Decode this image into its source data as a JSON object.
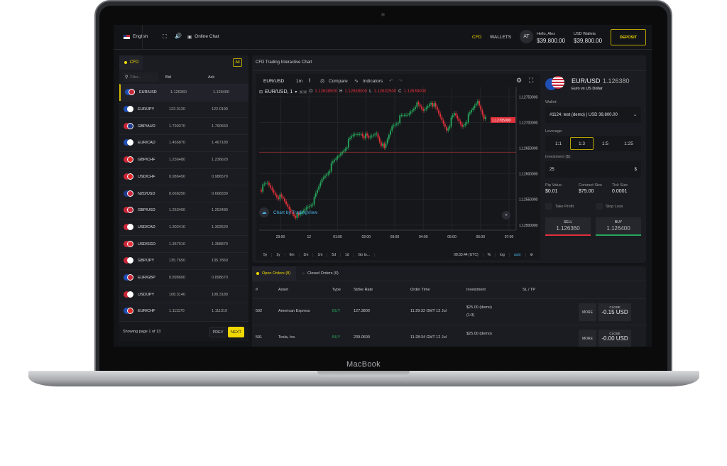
{
  "device": {
    "brand": "MacBook"
  },
  "header": {
    "language": "English",
    "online_chat": "Online Chat",
    "nav": [
      "CFD",
      "WALLETS"
    ],
    "avatar": "AT",
    "greeting": "Hello, Alex",
    "balance": "$39,800.00",
    "wallet_label": "USD Wallets",
    "wallet_balance": "$39,800.00",
    "deposit": "DEPOSIT"
  },
  "assets": {
    "tab": "CFD",
    "all": "All",
    "filter_placeholder": "Filter...",
    "col_bid": "Bid",
    "col_ask": "Ask",
    "rows": [
      {
        "pair": "EUR/USD",
        "bid": "1.126360",
        "ask": "1.126400",
        "c": [
          "#1f4fb4",
          "#c8283a"
        ]
      },
      {
        "pair": "EUR/JPY",
        "bid": "122.0120",
        "ask": "122.0190",
        "c": [
          "#1f4fb4",
          "#ffffff"
        ]
      },
      {
        "pair": "GBP/AUD",
        "bid": "1.790370",
        "ask": "1.790660",
        "c": [
          "#c8283a",
          "#1f3c8c"
        ]
      },
      {
        "pair": "EUR/CAD",
        "bid": "1.466870",
        "ask": "1.467180",
        "c": [
          "#1f4fb4",
          "#ffffff"
        ]
      },
      {
        "pair": "GBP/CHF",
        "bid": "1.236480",
        "ask": "1.236620",
        "c": [
          "#c8283a",
          "#e32a2a"
        ]
      },
      {
        "pair": "USD/CHF",
        "bid": "0.986490",
        "ask": "0.986570",
        "c": [
          "#c8283a",
          "#e32a2a"
        ]
      },
      {
        "pair": "NZD/USD",
        "bid": "0.668250",
        "ask": "0.668330",
        "c": [
          "#1f3c8c",
          "#c8283a"
        ]
      },
      {
        "pair": "GBP/USD",
        "bid": "1.253400",
        "ask": "1.253480",
        "c": [
          "#c8283a",
          "#c8283a"
        ]
      },
      {
        "pair": "USD/CAD",
        "bid": "1.302410",
        "ask": "1.302520",
        "c": [
          "#c8283a",
          "#ffffff"
        ]
      },
      {
        "pair": "USD/SGD",
        "bid": "1.357910",
        "ask": "1.358870",
        "c": [
          "#c8283a",
          "#e8303a"
        ]
      },
      {
        "pair": "GBP/JPY",
        "bid": "135.7650",
        "ask": "135.7860",
        "c": [
          "#c8283a",
          "#ffffff"
        ]
      },
      {
        "pair": "EUR/GBP",
        "bid": "0.898600",
        "ask": "0.898670",
        "c": [
          "#1f4fb4",
          "#c8283a"
        ]
      },
      {
        "pair": "USD/JPY",
        "bid": "108.3140",
        "ask": "108.3180",
        "c": [
          "#c8283a",
          "#ffffff"
        ]
      },
      {
        "pair": "EUR/CHF",
        "bid": "1.111170",
        "ask": "1.111310",
        "c": [
          "#1f4fb4",
          "#e32a2a"
        ]
      }
    ],
    "paging": "Showing page 1 of 13",
    "prev": "PREV",
    "next": "NEXT"
  },
  "chart": {
    "panel_title": "CFD Trading Interactive Chart",
    "symbol": "EUR/USD",
    "interval": "1m",
    "compare": "Compare",
    "indicators": "Indicators",
    "legend": {
      "title": "EUR/USD, 1",
      "o": "1.12638500",
      "h": "1.12639000",
      "l": "1.12632500",
      "c": "1.12638000"
    },
    "watermark": "Chart by TradingView",
    "ranges": [
      "5y",
      "1y",
      "6m",
      "3m",
      "1m",
      "5d",
      "1d",
      "Go to..."
    ],
    "clock": "08:33:44 (UTC)",
    "pct": "%",
    "log": "log",
    "auto": "auto",
    "current_price_label": "1.12705000"
  },
  "chart_data": {
    "type": "candlestick",
    "symbol": "EUR/USD",
    "interval": "1m",
    "x_ticks": [
      "23:00",
      "12",
      "01:00",
      "02:00",
      "03:00",
      "04:00",
      "05:00",
      "06:00",
      "07:00"
    ],
    "y_ticks": [
      "1.12750000",
      "1.12700000",
      "1.12650000",
      "1.12600000",
      "1.12550000",
      "1.12500000"
    ],
    "ylim": [
      1.1249,
      1.1277
    ],
    "closes": [
      1.12569,
      1.1258,
      1.12562,
      1.12548,
      1.12528,
      1.12514,
      1.12535,
      1.12549,
      1.1259,
      1.12611,
      1.12632,
      1.12653,
      1.12674,
      1.12681,
      1.12667,
      1.12681,
      1.12646,
      1.12694,
      1.12708,
      1.12715,
      1.12736,
      1.12722,
      1.12743,
      1.12715,
      1.12688,
      1.12715,
      1.12694,
      1.12715,
      1.12743,
      1.12705
    ],
    "reference_line": 1.12642,
    "current": 1.12705
  },
  "trade": {
    "pair": "EUR/USD",
    "price": "1.126380",
    "name": "Euro vs US Dollar",
    "wallet_label": "Wallet:",
    "wallet_value": "#1124: test (demo) | USD 39,800.00",
    "leverage_label": "Leverage:",
    "leverage": [
      "1:1",
      "1:3",
      "1:5",
      "1:25"
    ],
    "leverage_selected": "1:3",
    "investment_label": "Investment ($):",
    "investment": "25",
    "pip_label": "Pip Value",
    "pip": "$0.01",
    "contract_label": "Contract Size",
    "contract": "$75.00",
    "tick_label": "Tick Size",
    "tick": "0.0001",
    "take_profit": "Take Profit",
    "stop_loss": "Stop Loss",
    "sell": "SELL",
    "sell_price": "1.126360",
    "buy": "BUY",
    "buy_price": "1.126400"
  },
  "orders": {
    "tab_open": "Open Orders (8)",
    "tab_closed": "Closed Orders (0)",
    "cols": [
      "#",
      "Asset",
      "Type",
      "Strike Rate",
      "Order Time",
      "Investment",
      "SL / TP"
    ],
    "rows": [
      {
        "id": "592",
        "asset": "American Express",
        "type": "BUY",
        "rate": "127.3800",
        "time": "11:29:32 GMT 12 Jul",
        "inv": "$25.00 (demo)",
        "lev": "(1:3)",
        "more": "MORE",
        "close": "CLOSE",
        "pl": "-0.15 USD"
      },
      {
        "id": "591",
        "asset": "Tesla, Inc.",
        "type": "BUY",
        "rate": "239.0600",
        "time": "11:28:34 GMT 12 Jul",
        "inv": "$25.00 (demo)",
        "lev": "",
        "more": "MORE",
        "close": "CLOSE",
        "pl": "-0.00 USD"
      }
    ]
  },
  "colors": {
    "accent": "#f0d800",
    "up": "#26a65b",
    "down": "#e0303a",
    "bg": "#131418",
    "panel": "#1b1c21"
  }
}
